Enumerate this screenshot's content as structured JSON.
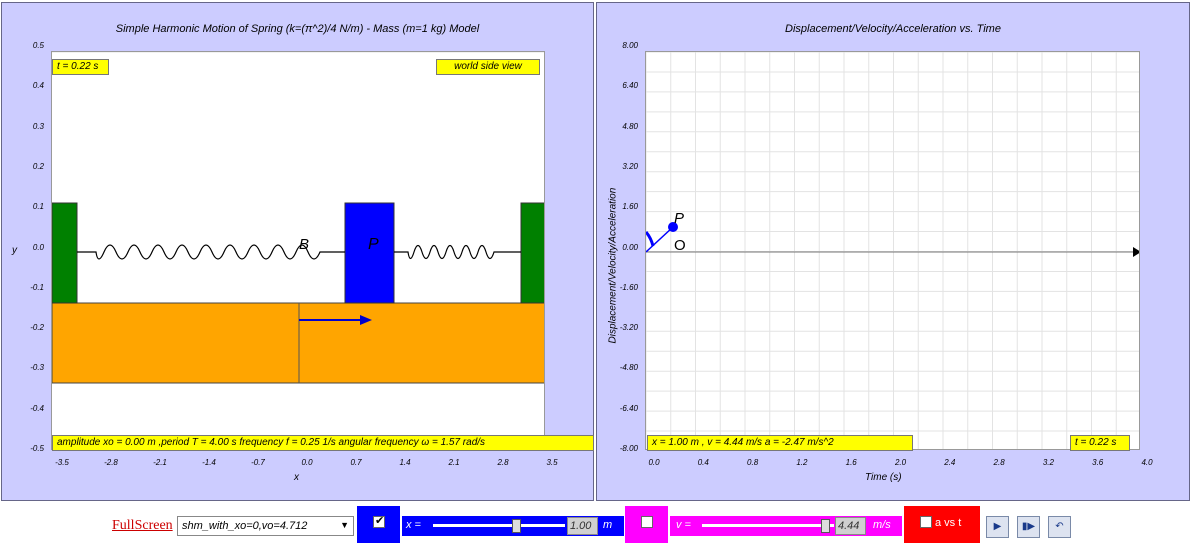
{
  "left_panel": {
    "title": "Simple Harmonic Motion of Spring (k=(π^2)/4 N/m) - Mass (m=1 kg) Model",
    "time_label": "t = 0.22 s",
    "view_label": "world side view",
    "info_label": "amplitude xo = 0.00 m ,period T = 4.00 s frequency f = 0.25 1/s angular frequency ω = 1.57 rad/s",
    "mass_label": "P",
    "overlap_label": "B",
    "xlabel": "x",
    "ylabel": "y",
    "xticks": [
      "-3.5",
      "-2.8",
      "-2.1",
      "-1.4",
      "-0.7",
      "0.0",
      "0.7",
      "1.4",
      "2.1",
      "2.8",
      "3.5"
    ],
    "yticks": [
      "0.5",
      "0.4",
      "0.3",
      "0.2",
      "0.1",
      "0.0",
      "-0.1",
      "-0.2",
      "-0.3",
      "-0.4",
      "-0.5"
    ]
  },
  "right_panel": {
    "title": "Displacement/Velocity/Acceleration vs. Time",
    "xlabel": "Time (s)",
    "ylabel": "Displacement/Velocity/Acceleration",
    "readout": "x = 1.00 m , v = 4.44 m/s a = -2.47 m/s^2",
    "time_label": "t = 0.22 s",
    "point_label": "P",
    "origin_label": "O",
    "xticks": [
      "0.0",
      "0.4",
      "0.8",
      "1.2",
      "1.6",
      "2.0",
      "2.4",
      "2.8",
      "3.2",
      "3.6",
      "4.0"
    ],
    "yticks": [
      "8.00",
      "6.40",
      "4.80",
      "3.20",
      "1.60",
      "0.00",
      "-1.60",
      "-3.20",
      "-4.80",
      "-6.40",
      "-8.00"
    ]
  },
  "controls": {
    "fullscreen": "FullScreen",
    "preset": "shm_with_xo=0,vo=4.712",
    "x_label": "x =",
    "x_value": "1.00",
    "x_unit": "m",
    "x_fraction": 0.64,
    "v_label": "v =",
    "v_value": "4.44",
    "v_unit": "m/s",
    "v_fraction": 0.97,
    "a_label": "a vs t",
    "x_checked": true,
    "v_checked": false,
    "a_checked": false
  },
  "colors": {
    "panel": "#ccccff",
    "wall": "#008000",
    "mass": "#0000ff",
    "floor": "#ffa500",
    "label_box": "#ffff00",
    "x_control": "#0000ff",
    "v_control": "#ff00ff",
    "a_control": "#ff0000"
  }
}
